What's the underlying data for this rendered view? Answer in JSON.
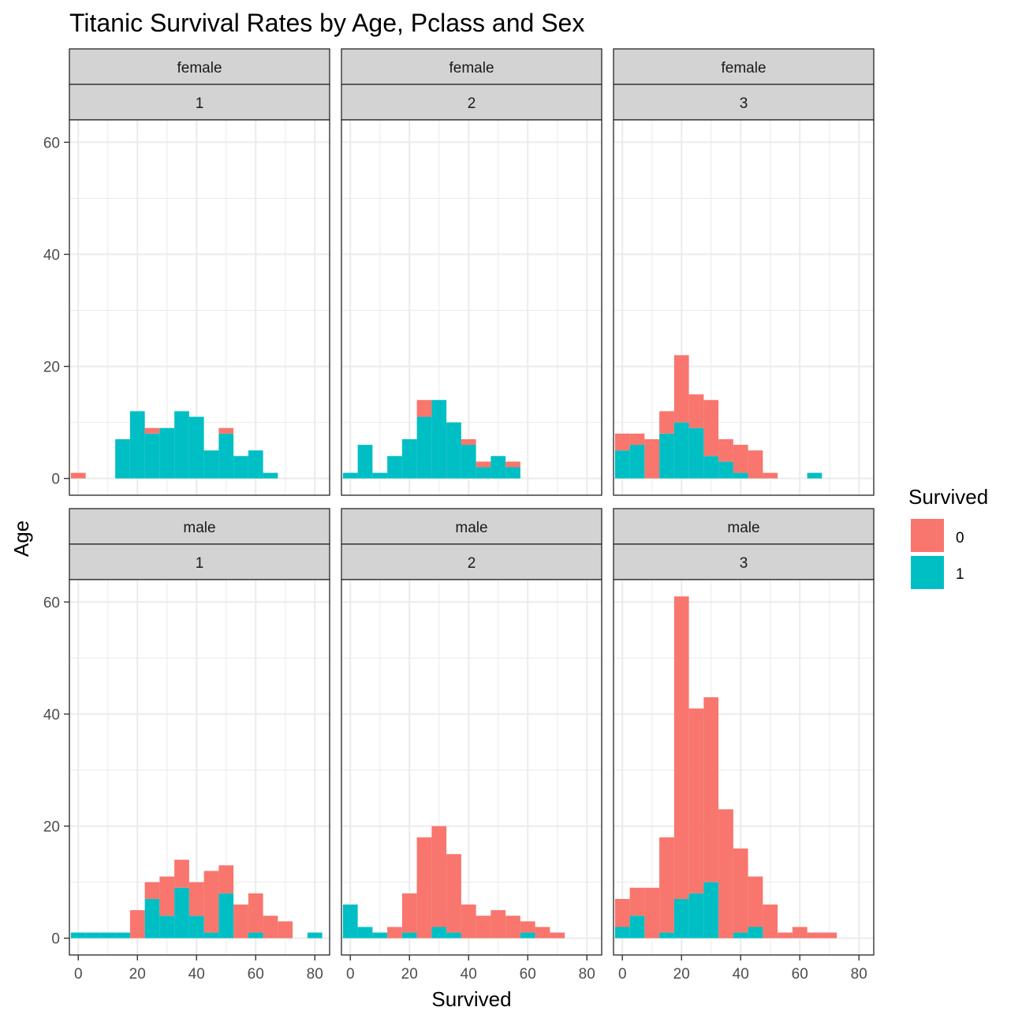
{
  "chart_data": {
    "type": "bar",
    "subtype": "stacked-histogram-facet-grid",
    "title": "Titanic Survival Rates by Age, Pclass and Sex",
    "xlabel": "Survived",
    "ylabel": "Age",
    "x_ticks": [
      0,
      20,
      40,
      60,
      80
    ],
    "y_ticks": [
      0,
      20,
      40,
      60
    ],
    "xlim": [
      -3,
      85
    ],
    "ylim": [
      -3,
      64
    ],
    "bin_centers": [
      0,
      5,
      10,
      15,
      20,
      25,
      30,
      35,
      40,
      45,
      50,
      55,
      60,
      65,
      70,
      75,
      80
    ],
    "grid": true,
    "legend": {
      "title": "Survived",
      "placement": "right",
      "items": [
        {
          "label": "0",
          "color": "#F8766D"
        },
        {
          "label": "1",
          "color": "#00BFC4"
        }
      ]
    },
    "panels": [
      {
        "sex": "female",
        "pclass": "1",
        "survived_0": [
          1,
          0,
          0,
          0,
          0,
          1,
          0,
          0,
          0,
          0,
          1,
          0,
          0,
          0,
          0,
          0,
          0
        ],
        "survived_1": [
          0,
          0,
          0,
          7,
          12,
          8,
          9,
          12,
          11,
          5,
          8,
          4,
          5,
          1,
          0,
          0,
          0
        ]
      },
      {
        "sex": "female",
        "pclass": "2",
        "survived_0": [
          0,
          0,
          0,
          0,
          0,
          3,
          0,
          0,
          1,
          1,
          0,
          1,
          0,
          0,
          0,
          0,
          0
        ],
        "survived_1": [
          1,
          6,
          1,
          4,
          7,
          11,
          14,
          10,
          6,
          2,
          4,
          2,
          0,
          0,
          0,
          0,
          0
        ]
      },
      {
        "sex": "female",
        "pclass": "3",
        "survived_0": [
          3,
          2,
          7,
          4,
          12,
          6,
          10,
          4,
          5,
          5,
          1,
          0,
          0,
          0,
          0,
          0,
          0
        ],
        "survived_1": [
          5,
          6,
          0,
          8,
          10,
          9,
          4,
          3,
          1,
          0,
          0,
          0,
          0,
          1,
          0,
          0,
          0
        ]
      },
      {
        "sex": "male",
        "pclass": "1",
        "survived_0": [
          0,
          0,
          0,
          0,
          5,
          3,
          7,
          5,
          6,
          11,
          5,
          6,
          7,
          4,
          3,
          0,
          0
        ],
        "survived_1": [
          1,
          1,
          1,
          1,
          0,
          7,
          4,
          9,
          4,
          1,
          8,
          0,
          1,
          0,
          0,
          0,
          1
        ]
      },
      {
        "sex": "male",
        "pclass": "2",
        "survived_0": [
          0,
          0,
          0,
          2,
          7,
          18,
          18,
          14,
          6,
          4,
          5,
          4,
          2,
          2,
          1,
          0,
          0
        ],
        "survived_1": [
          6,
          2,
          1,
          0,
          1,
          0,
          2,
          1,
          0,
          0,
          0,
          0,
          1,
          0,
          0,
          0,
          0
        ]
      },
      {
        "sex": "male",
        "pclass": "3",
        "survived_0": [
          5,
          5,
          9,
          17,
          54,
          33,
          33,
          23,
          15,
          9,
          6,
          1,
          2,
          1,
          1,
          0,
          0
        ],
        "survived_1": [
          2,
          4,
          0,
          1,
          7,
          8,
          10,
          0,
          1,
          2,
          0,
          0,
          0,
          0,
          0,
          0,
          0
        ]
      }
    ]
  }
}
